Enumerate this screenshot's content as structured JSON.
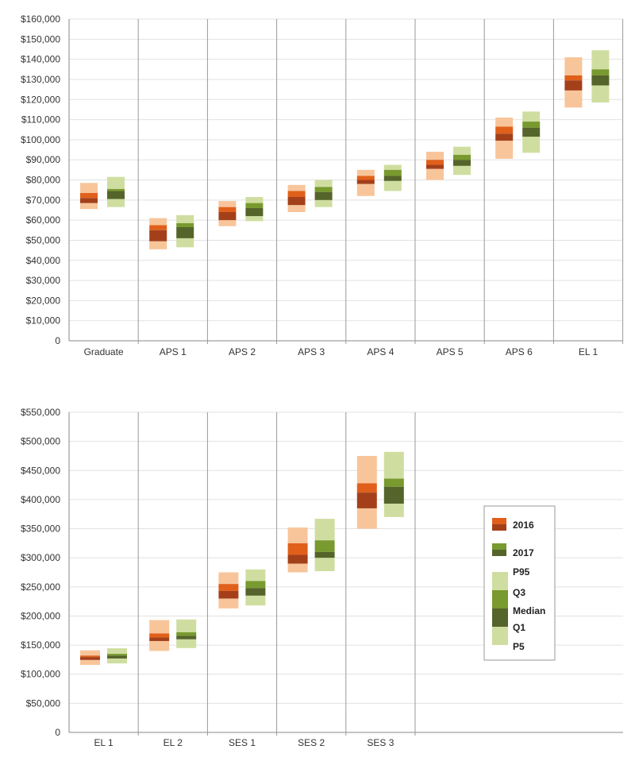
{
  "colors": {
    "2016": {
      "p5p95": "#f8c59a",
      "q1q3": "#e0601b",
      "median": "#a3401a"
    },
    "2017": {
      "p5p95": "#cfdea0",
      "q1q3": "#789a2e",
      "median": "#55642a"
    }
  },
  "legend": {
    "series": [
      "2016",
      "2017"
    ],
    "bands": [
      "P95",
      "Q3",
      "Median",
      "Q1",
      "P5"
    ]
  },
  "chart_data": [
    {
      "type": "box",
      "ylim": [
        0,
        160000
      ],
      "yticks": [
        "0",
        "$10,000",
        "$20,000",
        "$30,000",
        "$40,000",
        "$50,000",
        "$60,000",
        "$70,000",
        "$80,000",
        "$90,000",
        "$100,000",
        "$110,000",
        "$120,000",
        "$130,000",
        "$140,000",
        "$150,000",
        "$160,000"
      ],
      "categories": [
        "Graduate",
        "APS 1",
        "APS 2",
        "APS 3",
        "APS 4",
        "APS 5",
        "APS 6",
        "EL 1"
      ],
      "series": [
        {
          "name": "2016",
          "stats": [
            {
              "p5": 65500,
              "q1": 68500,
              "median": 71000,
              "q3": 73500,
              "p95": 78500
            },
            {
              "p5": 45500,
              "q1": 49500,
              "median": 55000,
              "q3": 57500,
              "p95": 61000
            },
            {
              "p5": 57000,
              "q1": 60000,
              "median": 64000,
              "q3": 66500,
              "p95": 69500
            },
            {
              "p5": 64000,
              "q1": 67500,
              "median": 71500,
              "q3": 74500,
              "p95": 77500
            },
            {
              "p5": 72000,
              "q1": 78000,
              "median": 80000,
              "q3": 82000,
              "p95": 85000
            },
            {
              "p5": 80000,
              "q1": 85500,
              "median": 87500,
              "q3": 90000,
              "p95": 94000
            },
            {
              "p5": 90500,
              "q1": 99500,
              "median": 103000,
              "q3": 106500,
              "p95": 111000
            },
            {
              "p5": 116000,
              "q1": 124500,
              "median": 129500,
              "q3": 132000,
              "p95": 141000
            }
          ]
        },
        {
          "name": "2017",
          "stats": [
            {
              "p5": 66500,
              "q1": 70500,
              "median": 74500,
              "q3": 75500,
              "p95": 81500
            },
            {
              "p5": 46500,
              "q1": 51000,
              "median": 56500,
              "q3": 58500,
              "p95": 62500
            },
            {
              "p5": 59500,
              "q1": 62000,
              "median": 66000,
              "q3": 68500,
              "p95": 71500
            },
            {
              "p5": 66500,
              "q1": 70000,
              "median": 74000,
              "q3": 76500,
              "p95": 80000
            },
            {
              "p5": 74500,
              "q1": 79500,
              "median": 82000,
              "q3": 85000,
              "p95": 87500
            },
            {
              "p5": 82500,
              "q1": 87000,
              "median": 90000,
              "q3": 92500,
              "p95": 96500
            },
            {
              "p5": 93500,
              "q1": 101500,
              "median": 106000,
              "q3": 109000,
              "p95": 114000
            },
            {
              "p5": 118500,
              "q1": 127000,
              "median": 132000,
              "q3": 135000,
              "p95": 144500
            }
          ]
        }
      ]
    },
    {
      "type": "box",
      "ylim": [
        0,
        550000
      ],
      "yticks": [
        "0",
        "$50,000",
        "$100,000",
        "$150,000",
        "$200,000",
        "$250,000",
        "$300,000",
        "$350,000",
        "$400,000",
        "$450,000",
        "$500,000",
        "$550,000"
      ],
      "categories": [
        "EL 1",
        "EL 2",
        "SES 1",
        "SES 2",
        "SES 3"
      ],
      "series": [
        {
          "name": "2016",
          "stats": [
            {
              "p5": 116000,
              "q1": 124500,
              "median": 129500,
              "q3": 132000,
              "p95": 141000
            },
            {
              "p5": 140000,
              "q1": 157000,
              "median": 163000,
              "q3": 170000,
              "p95": 193000
            },
            {
              "p5": 213000,
              "q1": 230000,
              "median": 243000,
              "q3": 255000,
              "p95": 275000
            },
            {
              "p5": 275000,
              "q1": 290000,
              "median": 305000,
              "q3": 325000,
              "p95": 352000
            },
            {
              "p5": 350000,
              "q1": 385000,
              "median": 412000,
              "q3": 428000,
              "p95": 475000
            }
          ]
        },
        {
          "name": "2017",
          "stats": [
            {
              "p5": 118500,
              "q1": 127000,
              "median": 132000,
              "q3": 135000,
              "p95": 144500
            },
            {
              "p5": 145000,
              "q1": 160000,
              "median": 166000,
              "q3": 172000,
              "p95": 194000
            },
            {
              "p5": 218000,
              "q1": 235000,
              "median": 248000,
              "q3": 260000,
              "p95": 280000
            },
            {
              "p5": 277000,
              "q1": 300000,
              "median": 310000,
              "q3": 330000,
              "p95": 367000
            },
            {
              "p5": 370000,
              "q1": 393000,
              "median": 422000,
              "q3": 436000,
              "p95": 482000
            }
          ]
        }
      ]
    }
  ]
}
